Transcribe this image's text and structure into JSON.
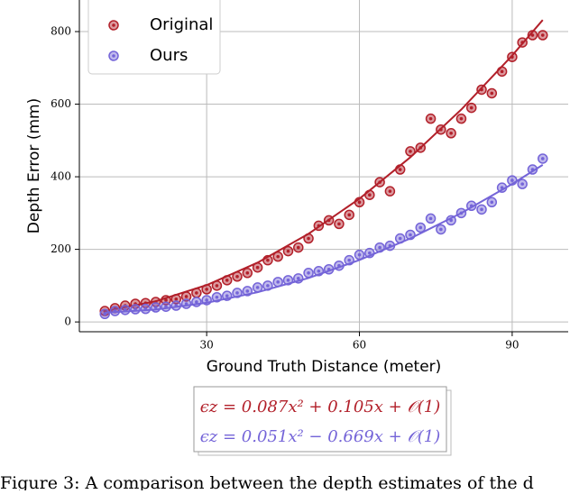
{
  "chart_data": {
    "type": "scatter",
    "x_label": "Ground Truth Distance (meter)",
    "y_label": "Depth Error (mm)",
    "xlim": [
      5,
      101
    ],
    "ylim": [
      -27,
      887
    ],
    "xticks": [
      30,
      60,
      90
    ],
    "yticks": [
      0,
      200,
      400,
      600,
      800
    ],
    "grid": true,
    "legend": "upper left",
    "x": [
      10,
      12,
      14,
      16,
      18,
      20,
      22,
      24,
      26,
      28,
      30,
      32,
      34,
      36,
      38,
      40,
      42,
      44,
      46,
      48,
      50,
      52,
      54,
      56,
      58,
      60,
      62,
      64,
      66,
      68,
      70,
      72,
      74,
      76,
      78,
      80,
      82,
      84,
      86,
      88,
      90,
      92,
      94,
      96
    ],
    "fit_x": [
      10,
      20,
      30,
      40,
      50,
      60,
      70,
      80,
      90,
      96
    ],
    "series": [
      {
        "name": "Original",
        "color": "#b2202a",
        "values": [
          30,
          38,
          45,
          50,
          52,
          55,
          60,
          63,
          70,
          80,
          90,
          100,
          115,
          125,
          135,
          150,
          170,
          180,
          195,
          205,
          230,
          265,
          280,
          270,
          295,
          330,
          350,
          385,
          360,
          420,
          470,
          480,
          560,
          530,
          520,
          560,
          590,
          640,
          630,
          690,
          730,
          770,
          790,
          790
        ],
        "fit": [
          29.8,
          57,
          101.5,
          163.4,
          242.8,
          339.5,
          453.7,
          585.2,
          734.2,
          831.9
        ]
      },
      {
        "name": "Ours",
        "color": "#7464d8",
        "values": [
          22,
          30,
          33,
          35,
          36,
          40,
          42,
          45,
          50,
          55,
          60,
          68,
          72,
          80,
          85,
          95,
          100,
          110,
          115,
          120,
          135,
          140,
          145,
          155,
          170,
          185,
          190,
          205,
          210,
          230,
          240,
          260,
          285,
          255,
          280,
          300,
          320,
          310,
          330,
          370,
          390,
          380,
          420,
          450
        ],
        "fit": [
          25.4,
          34.0,
          52.8,
          81.8,
          121.0,
          170.5,
          230.1,
          300.0,
          380.0,
          432.8
        ]
      }
    ]
  },
  "equations": [
    "ϵz = 0.087x² + 0.105x + 𝒪(1)",
    "ϵz = 0.051x² − 0.669x + 𝒪(1)"
  ],
  "caption": "Figure 3: A comparison between the depth estimates of the d"
}
